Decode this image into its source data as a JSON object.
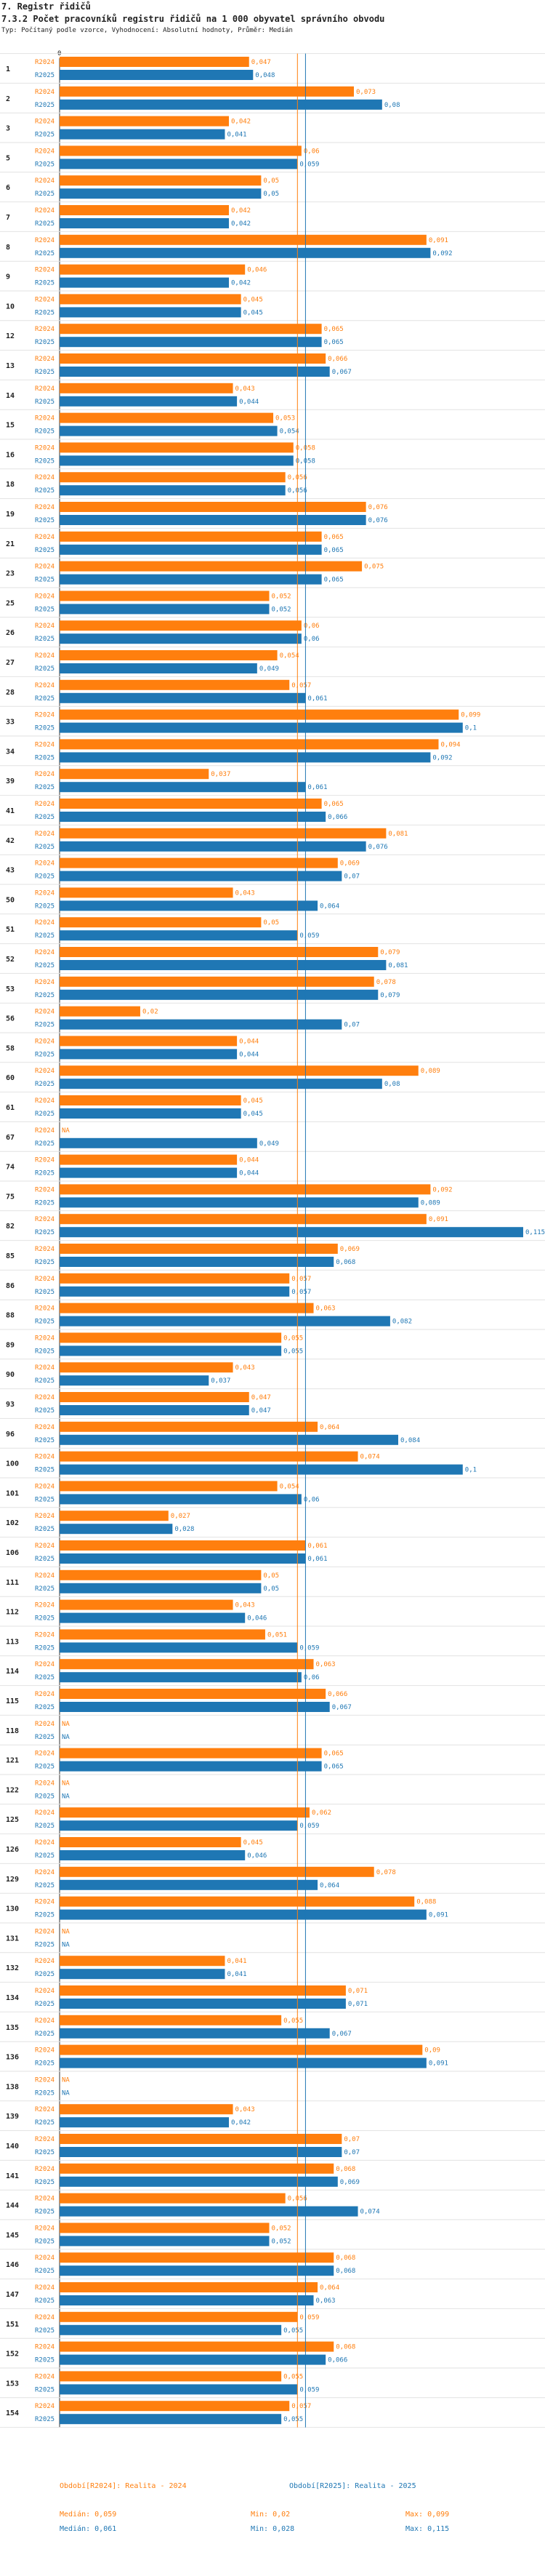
{
  "header": {
    "title": "7. Registr řidičů",
    "subtitle": "7.3.2 Počet pracovníků registru řidičů na 1 000 obyvatel správního obvodu",
    "info": "Typ: Počítaný podle vzorce, Vyhodnocení: Absolutní hodnoty, Průměr: Medián"
  },
  "chart_data": {
    "type": "bar",
    "orientation": "horizontal",
    "x_tick_labels": [
      "0"
    ],
    "xlim": [
      0,
      0.115
    ],
    "series": [
      {
        "name": "R2024",
        "color": "#ff7f0e"
      },
      {
        "name": "R2025",
        "color": "#1f77b4"
      }
    ],
    "medians": {
      "R2024": 0.059,
      "R2025": 0.061
    },
    "rows": [
      {
        "id": "1",
        "v2024": 0.047,
        "v2025": 0.048
      },
      {
        "id": "2",
        "v2024": 0.073,
        "v2025": 0.08
      },
      {
        "id": "3",
        "v2024": 0.042,
        "v2025": 0.041
      },
      {
        "id": "5",
        "v2024": 0.06,
        "v2025": 0.059
      },
      {
        "id": "6",
        "v2024": 0.05,
        "v2025": 0.05
      },
      {
        "id": "7",
        "v2024": 0.042,
        "v2025": 0.042
      },
      {
        "id": "8",
        "v2024": 0.091,
        "v2025": 0.092
      },
      {
        "id": "9",
        "v2024": 0.046,
        "v2025": 0.042
      },
      {
        "id": "10",
        "v2024": 0.045,
        "v2025": 0.045
      },
      {
        "id": "12",
        "v2024": 0.065,
        "v2025": 0.065
      },
      {
        "id": "13",
        "v2024": 0.066,
        "v2025": 0.067
      },
      {
        "id": "14",
        "v2024": 0.043,
        "v2025": 0.044
      },
      {
        "id": "15",
        "v2024": 0.053,
        "v2025": 0.054
      },
      {
        "id": "16",
        "v2024": 0.058,
        "v2025": 0.058
      },
      {
        "id": "18",
        "v2024": 0.056,
        "v2025": 0.056
      },
      {
        "id": "19",
        "v2024": 0.076,
        "v2025": 0.076
      },
      {
        "id": "21",
        "v2024": 0.065,
        "v2025": 0.065
      },
      {
        "id": "23",
        "v2024": 0.075,
        "v2025": 0.065
      },
      {
        "id": "25",
        "v2024": 0.052,
        "v2025": 0.052
      },
      {
        "id": "26",
        "v2024": 0.06,
        "v2025": 0.06
      },
      {
        "id": "27",
        "v2024": 0.054,
        "v2025": 0.049
      },
      {
        "id": "28",
        "v2024": 0.057,
        "v2025": 0.061
      },
      {
        "id": "33",
        "v2024": 0.099,
        "v2025": 0.1
      },
      {
        "id": "34",
        "v2024": 0.094,
        "v2025": 0.092
      },
      {
        "id": "39",
        "v2024": 0.037,
        "v2025": 0.061
      },
      {
        "id": "41",
        "v2024": 0.065,
        "v2025": 0.066
      },
      {
        "id": "42",
        "v2024": 0.081,
        "v2025": 0.076
      },
      {
        "id": "43",
        "v2024": 0.069,
        "v2025": 0.07
      },
      {
        "id": "50",
        "v2024": 0.043,
        "v2025": 0.064
      },
      {
        "id": "51",
        "v2024": 0.05,
        "v2025": 0.059
      },
      {
        "id": "52",
        "v2024": 0.079,
        "v2025": 0.081
      },
      {
        "id": "53",
        "v2024": 0.078,
        "v2025": 0.079
      },
      {
        "id": "56",
        "v2024": 0.02,
        "v2025": 0.07
      },
      {
        "id": "58",
        "v2024": 0.044,
        "v2025": 0.044
      },
      {
        "id": "60",
        "v2024": 0.089,
        "v2025": 0.08
      },
      {
        "id": "61",
        "v2024": 0.045,
        "v2025": 0.045
      },
      {
        "id": "67",
        "v2024": null,
        "v2025": 0.049
      },
      {
        "id": "74",
        "v2024": 0.044,
        "v2025": 0.044
      },
      {
        "id": "75",
        "v2024": 0.092,
        "v2025": 0.089
      },
      {
        "id": "82",
        "v2024": 0.091,
        "v2025": 0.115
      },
      {
        "id": "85",
        "v2024": 0.069,
        "v2025": 0.068
      },
      {
        "id": "86",
        "v2024": 0.057,
        "v2025": 0.057
      },
      {
        "id": "88",
        "v2024": 0.063,
        "v2025": 0.082
      },
      {
        "id": "89",
        "v2024": 0.055,
        "v2025": 0.055
      },
      {
        "id": "90",
        "v2024": 0.043,
        "v2025": 0.037
      },
      {
        "id": "93",
        "v2024": 0.047,
        "v2025": 0.047
      },
      {
        "id": "96",
        "v2024": 0.064,
        "v2025": 0.084
      },
      {
        "id": "100",
        "v2024": 0.074,
        "v2025": 0.1
      },
      {
        "id": "101",
        "v2024": 0.054,
        "v2025": 0.06
      },
      {
        "id": "102",
        "v2024": 0.027,
        "v2025": 0.028
      },
      {
        "id": "106",
        "v2024": 0.061,
        "v2025": 0.061
      },
      {
        "id": "111",
        "v2024": 0.05,
        "v2025": 0.05
      },
      {
        "id": "112",
        "v2024": 0.043,
        "v2025": 0.046
      },
      {
        "id": "113",
        "v2024": 0.051,
        "v2025": 0.059
      },
      {
        "id": "114",
        "v2024": 0.063,
        "v2025": 0.06
      },
      {
        "id": "115",
        "v2024": 0.066,
        "v2025": 0.067
      },
      {
        "id": "118",
        "v2024": null,
        "v2025": null
      },
      {
        "id": "121",
        "v2024": 0.065,
        "v2025": 0.065
      },
      {
        "id": "122",
        "v2024": null,
        "v2025": null
      },
      {
        "id": "125",
        "v2024": 0.062,
        "v2025": 0.059
      },
      {
        "id": "126",
        "v2024": 0.045,
        "v2025": 0.046
      },
      {
        "id": "129",
        "v2024": 0.078,
        "v2025": 0.064
      },
      {
        "id": "130",
        "v2024": 0.088,
        "v2025": 0.091
      },
      {
        "id": "131",
        "v2024": null,
        "v2025": null
      },
      {
        "id": "132",
        "v2024": 0.041,
        "v2025": 0.041
      },
      {
        "id": "134",
        "v2024": 0.071,
        "v2025": 0.071
      },
      {
        "id": "135",
        "v2024": 0.055,
        "v2025": 0.067
      },
      {
        "id": "136",
        "v2024": 0.09,
        "v2025": 0.091
      },
      {
        "id": "138",
        "v2024": null,
        "v2025": null
      },
      {
        "id": "139",
        "v2024": 0.043,
        "v2025": 0.042
      },
      {
        "id": "140",
        "v2024": 0.07,
        "v2025": 0.07
      },
      {
        "id": "141",
        "v2024": 0.068,
        "v2025": 0.069
      },
      {
        "id": "144",
        "v2024": 0.056,
        "v2025": 0.074
      },
      {
        "id": "145",
        "v2024": 0.052,
        "v2025": 0.052
      },
      {
        "id": "146",
        "v2024": 0.068,
        "v2025": 0.068
      },
      {
        "id": "147",
        "v2024": 0.064,
        "v2025": 0.063
      },
      {
        "id": "151",
        "v2024": 0.059,
        "v2025": 0.055
      },
      {
        "id": "152",
        "v2024": 0.068,
        "v2025": 0.066
      },
      {
        "id": "153",
        "v2024": 0.055,
        "v2025": 0.059
      },
      {
        "id": "154",
        "v2024": 0.057,
        "v2025": 0.055
      }
    ],
    "na_label": "NA"
  },
  "footer": {
    "left_series_label": "Období[R2024]: Realita - 2024",
    "left_median": "Medián: 0,059",
    "left_min": "Min: 0,02",
    "left_max": "Max: 0,099",
    "right_series_label": "Období[R2025]: Realita - 2025",
    "right_median": "Medián: 0,061",
    "right_min": "Min: 0,028",
    "right_max": "Max: 0,115"
  },
  "colors": {
    "c2024": "#ff7f0e",
    "c2025": "#1f77b4",
    "median2024": "#ff7f0e",
    "median2025": "#1f77b4"
  }
}
